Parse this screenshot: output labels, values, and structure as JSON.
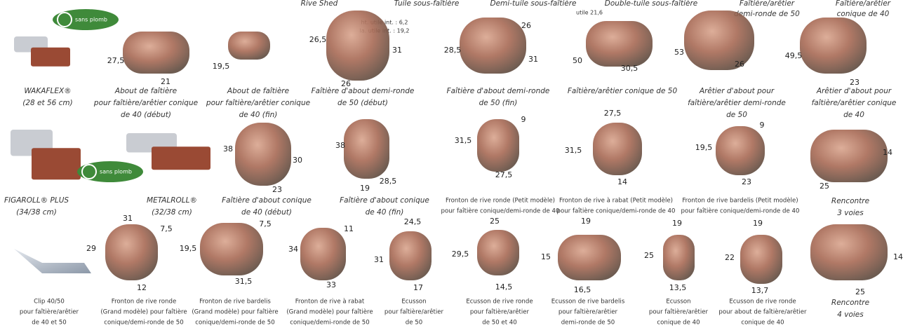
{
  "header": [
    [
      "Rive Shed"
    ],
    [
      "Tuile sous-faîtière"
    ],
    [
      "Demi-tuile sous-faîtière"
    ],
    [
      "Double-tuile sous-faîtière"
    ],
    [
      "Faîtière/arêtier",
      "demi-ronde de 50"
    ],
    [
      "Faîtière/arêtier",
      "conique de 40"
    ]
  ],
  "notes": [
    "ht. utile int. : 6,2",
    "la. utile int. : 19,2",
    "utile 21,6"
  ],
  "badges": [
    "sans plomb",
    "sans plomb"
  ],
  "items": [
    {
      "caption": [
        "WAKAFLEX®",
        "(28 et 56 cm)"
      ],
      "dims": []
    },
    {
      "caption": [
        "About de faîtière",
        "pour faîtière/arêtier conique",
        "de 40 (début)"
      ],
      "dims": [
        "27,5",
        "21"
      ]
    },
    {
      "caption": [
        "About de faîtière",
        "pour faîtière/arêtier conique",
        "de 40 (fin)"
      ],
      "dims": [
        "19,5"
      ]
    },
    {
      "caption": [
        "Faîtière d'about demi-ronde",
        "de 50 (début)"
      ],
      "dims": [
        "26,5",
        "26",
        "31"
      ]
    },
    {
      "caption": [
        "Faîtière d'about demi-ronde",
        "de 50 (fin)"
      ],
      "dims": [
        "28,5",
        "26",
        "31"
      ]
    },
    {
      "caption": [
        "Faîtière/arêtier conique de 50"
      ],
      "dims": [
        "50",
        "30,5"
      ]
    },
    {
      "caption": [
        "Arêtier d'about pour",
        "faîtière/arêtier demi-ronde",
        "de 50"
      ],
      "dims": [
        "53",
        "26"
      ]
    },
    {
      "caption": [
        "Arêtier d'about pour",
        "faîtière/arêtier conique",
        "de 40"
      ],
      "dims": [
        "49,5",
        "23"
      ]
    },
    {
      "caption": [
        "FIGAROLL® PLUS",
        "(34/38 cm)"
      ],
      "dims": []
    },
    {
      "caption": [
        "METALROLL®",
        "(32/38 cm)"
      ],
      "dims": []
    },
    {
      "caption": [
        "Faîtière d'about conique",
        "de 40 (début)"
      ],
      "dims": [
        "38",
        "30",
        "23"
      ]
    },
    {
      "caption": [
        "Faîtière d'about conique",
        "de 40 (fin)"
      ],
      "dims": [
        "38",
        "28,5",
        "19"
      ]
    },
    {
      "caption": [
        "Fronton de rive ronde (Petit modèle)",
        "pour faîtière conique/demi-ronde de 40"
      ],
      "dims": [
        "9",
        "31,5",
        "27,5"
      ]
    },
    {
      "caption": [
        "Fronton de rive à rabat (Petit modèle)",
        "pour faîtière conique/demi-ronde de 40"
      ],
      "dims": [
        "27,5",
        "31,5",
        "14"
      ]
    },
    {
      "caption": [
        "Fronton de rive bardelis (Petit modèle)",
        "pour faîtière conique/demi-ronde de 40"
      ],
      "dims": [
        "9",
        "19,5",
        "23"
      ]
    },
    {
      "caption": [
        "Rencontre",
        "3 voies"
      ],
      "dims": [
        "14",
        "25"
      ]
    },
    {
      "caption": [
        "Clip 40/50",
        "pour faîtière/arêtier",
        "de 40 et 50"
      ],
      "dims": []
    },
    {
      "caption": [
        "Fronton de rive ronde",
        "(Grand modèle) pour faîtière",
        "conique/demi-ronde de 50"
      ],
      "dims": [
        "31",
        "7,5",
        "29",
        "12"
      ]
    },
    {
      "caption": [
        "Fronton de rive bardelis",
        "(Grand modèle) pour faîtière",
        "conique/demi-ronde de 50"
      ],
      "dims": [
        "19,5",
        "7,5",
        "31,5"
      ]
    },
    {
      "caption": [
        "Fronton de rive à rabat",
        "(Grand modèle) pour faîtière",
        "conique/demi-ronde de 50"
      ],
      "dims": [
        "11",
        "34",
        "33"
      ]
    },
    {
      "caption": [
        "Ecusson",
        "pour faîtière/arêtier",
        "de 50"
      ],
      "dims": [
        "24,5",
        "31",
        "17"
      ]
    },
    {
      "caption": [
        "Ecusson de rive ronde",
        "pour faîtière/arêtier",
        "de 50 et 40"
      ],
      "dims": [
        "25",
        "29,5",
        "14,5"
      ]
    },
    {
      "caption": [
        "Ecusson de rive bardelis",
        "pour faîtière/arêtier",
        "demi-ronde de 50"
      ],
      "dims": [
        "19",
        "15",
        "16,5"
      ]
    },
    {
      "caption": [
        "Ecusson",
        "pour faîtière/arêtier",
        "conique de 40"
      ],
      "dims": [
        "19",
        "25",
        "13,5"
      ]
    },
    {
      "caption": [
        "Ecusson de rive ronde",
        "pour about de faîtière/arêtier",
        "conique de 40"
      ],
      "dims": [
        "19",
        "22",
        "13,7"
      ]
    },
    {
      "caption": [
        "Rencontre",
        "4 voies"
      ],
      "dims": [
        "14",
        "25"
      ]
    }
  ]
}
